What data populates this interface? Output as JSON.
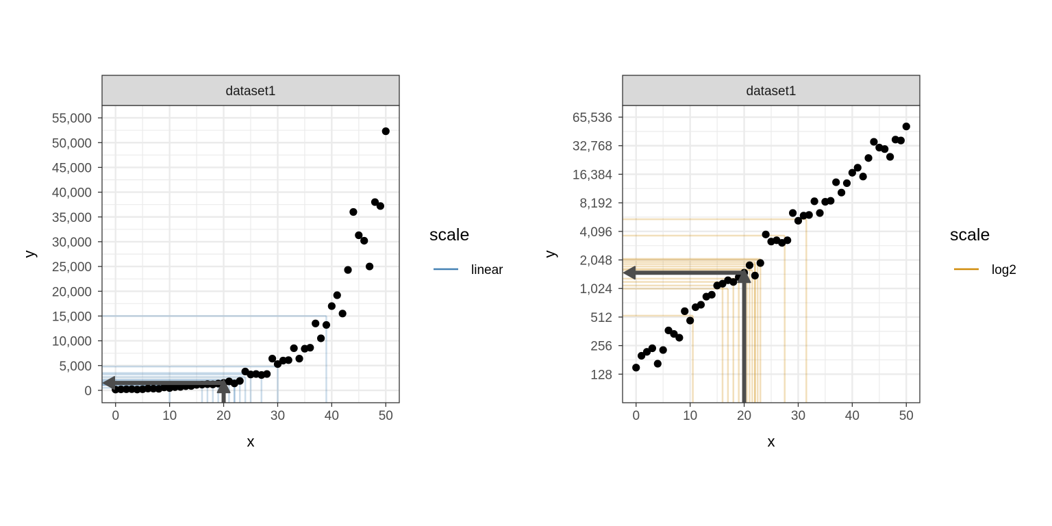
{
  "chart_data": [
    {
      "type": "scatter",
      "panel": "left",
      "strip": "dataset1",
      "xlabel": "x",
      "ylabel": "y",
      "xlim": [
        -2.5,
        52.5
      ],
      "ylim": [
        -2500,
        57500
      ],
      "y_scale": "linear",
      "x_ticks": [
        0,
        10,
        20,
        30,
        40,
        50
      ],
      "x_tick_labels": [
        "0",
        "10",
        "20",
        "30",
        "40",
        "50"
      ],
      "y_ticks": [
        0,
        5000,
        10000,
        15000,
        20000,
        25000,
        30000,
        35000,
        40000,
        45000,
        50000,
        55000
      ],
      "y_tick_labels": [
        "0",
        "5,000",
        "10,000",
        "15,000",
        "20,000",
        "25,000",
        "30,000",
        "35,000",
        "40,000",
        "45,000",
        "50,000",
        "55,000"
      ],
      "grid": true,
      "legend": {
        "title": "scale",
        "entries": [
          "linear"
        ],
        "position": "right"
      },
      "line_color": "#4682b4",
      "points": {
        "x": [
          0,
          1,
          2,
          3,
          4,
          5,
          6,
          7,
          8,
          9,
          10,
          11,
          12,
          13,
          14,
          15,
          16,
          17,
          18,
          19,
          20,
          21,
          22,
          23,
          24,
          25,
          26,
          27,
          28,
          29,
          30,
          31,
          32,
          33,
          34,
          35,
          36,
          37,
          38,
          39,
          40,
          41,
          42,
          43,
          44,
          45,
          46,
          47,
          48,
          49,
          50
        ],
        "y": [
          150,
          200,
          220,
          240,
          165,
          230,
          370,
          340,
          310,
          590,
          470,
          650,
          690,
          840,
          880,
          1100,
          1150,
          1250,
          1200,
          1350,
          1500,
          1800,
          1400,
          1900,
          3800,
          3200,
          3300,
          3100,
          3300,
          6400,
          5300,
          6000,
          6100,
          8500,
          6400,
          8400,
          8600,
          13500,
          10500,
          13200,
          17000,
          19200,
          15500,
          24300,
          36000,
          31300,
          30200,
          25000,
          38000,
          37200,
          52300
        ]
      },
      "highlight_segments": {
        "x": [
          20,
          22,
          22,
          23,
          17,
          10,
          21,
          24,
          25,
          27,
          30,
          39,
          19,
          18,
          16
        ],
        "y": [
          1500,
          1800,
          2000,
          2200,
          1000,
          500,
          1200,
          2700,
          3200,
          3500,
          4800,
          15000,
          1600,
          1400,
          1100
        ]
      },
      "arrow": {
        "at_x": 20,
        "at_y": 1500
      }
    },
    {
      "type": "scatter",
      "panel": "right",
      "strip": "dataset1",
      "xlabel": "x",
      "ylabel": "y",
      "xlim": [
        -2.5,
        52.5
      ],
      "ylim": [
        64,
        87000
      ],
      "y_scale": "log2",
      "x_ticks": [
        0,
        10,
        20,
        30,
        40,
        50
      ],
      "x_tick_labels": [
        "0",
        "10",
        "20",
        "30",
        "40",
        "50"
      ],
      "y_ticks": [
        128,
        256,
        512,
        1024,
        2048,
        4096,
        8192,
        16384,
        32768,
        65536
      ],
      "y_tick_labels": [
        "128",
        "256",
        "512",
        "1,024",
        "2,048",
        "4,096",
        "8,192",
        "16,384",
        "32,768",
        "65,536"
      ],
      "grid": true,
      "legend": {
        "title": "scale",
        "entries": [
          "log2"
        ],
        "position": "right"
      },
      "line_color": "#d08c0c",
      "points": {
        "x": [
          0,
          1,
          2,
          3,
          4,
          5,
          6,
          7,
          8,
          9,
          10,
          11,
          12,
          13,
          14,
          15,
          16,
          17,
          18,
          19,
          20,
          21,
          22,
          23,
          24,
          25,
          26,
          27,
          28,
          29,
          30,
          31,
          32,
          33,
          34,
          35,
          36,
          37,
          38,
          39,
          40,
          41,
          42,
          43,
          44,
          45,
          46,
          47,
          48,
          49,
          50
        ],
        "y": [
          150,
          200,
          220,
          240,
          165,
          230,
          370,
          340,
          310,
          590,
          470,
          650,
          690,
          840,
          880,
          1100,
          1150,
          1250,
          1200,
          1350,
          1500,
          1800,
          1400,
          1900,
          3800,
          3200,
          3300,
          3100,
          3300,
          6400,
          5300,
          6000,
          6100,
          8500,
          6400,
          8400,
          8600,
          13500,
          10500,
          13200,
          17000,
          19200,
          15500,
          24300,
          36000,
          31300,
          30200,
          25000,
          38000,
          37200,
          52300
        ]
      },
      "highlight_segments": {
        "x": [
          20,
          21,
          22,
          22.5,
          23,
          17,
          10.5,
          19,
          18,
          16,
          21.5,
          27.5,
          31.5,
          22,
          20.5
        ],
        "y": [
          1500,
          1750,
          1950,
          2050,
          2100,
          1020,
          530,
          1300,
          1200,
          1100,
          1600,
          3700,
          5500,
          1850,
          1650
        ]
      },
      "arrow": {
        "at_x": 20,
        "at_y": 1500
      }
    }
  ]
}
